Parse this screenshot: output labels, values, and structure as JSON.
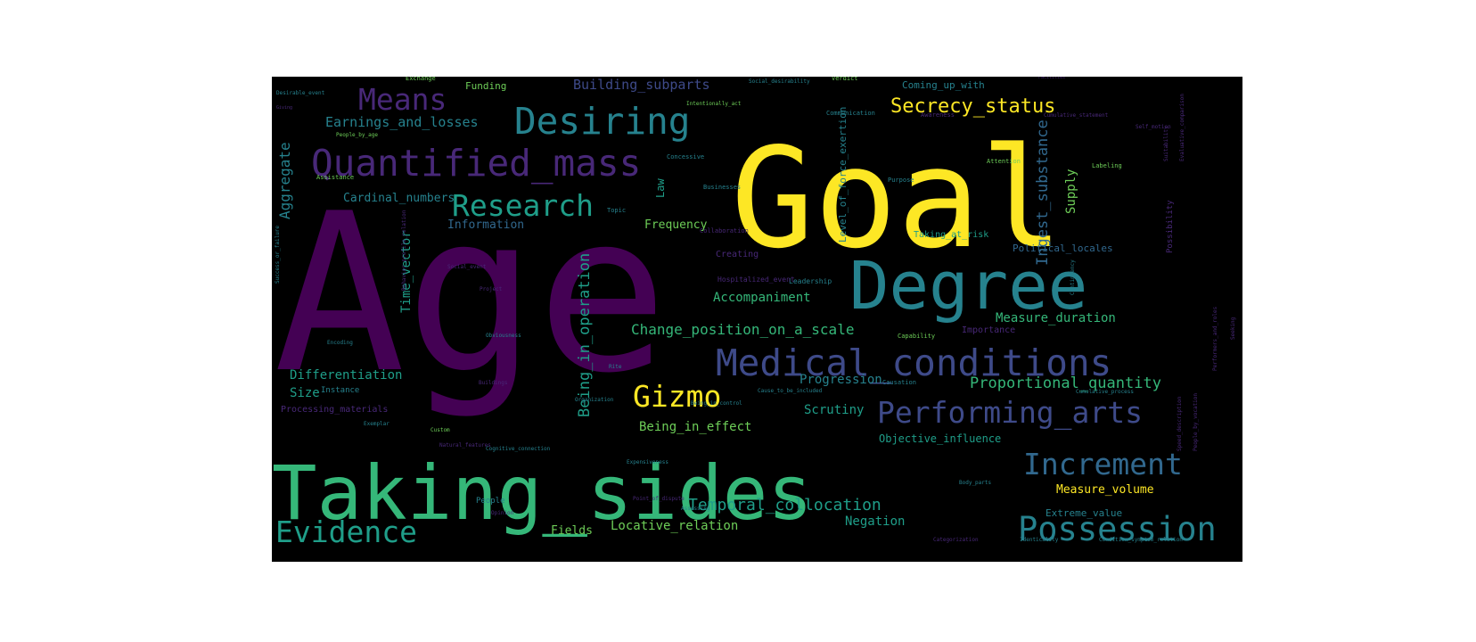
{
  "palette": {
    "purple": "#440154",
    "violet": "#482878",
    "indigo": "#3e4a89",
    "blue": "#31688e",
    "teal": "#26828e",
    "cyan": "#1f9e89",
    "green": "#35b779",
    "lime": "#6ece58",
    "yellow": "#fde725",
    "dimgreen": "#1f6f5a",
    "dimviolet": "#2c1a4e",
    "dimblue": "#1d3f5a",
    "dimyellow": "#8a8a2a"
  },
  "words": [
    {
      "text": "Age",
      "color": "purple"
    },
    {
      "text": "Goal",
      "color": "yellow"
    },
    {
      "text": "Taking_sides",
      "color": "green"
    },
    {
      "text": "Degree",
      "color": "teal"
    },
    {
      "text": "Medical_conditions",
      "color": "indigo"
    },
    {
      "text": "Desiring",
      "color": "teal"
    },
    {
      "text": "Quantified_mass",
      "color": "violet"
    },
    {
      "text": "Research",
      "color": "cyan"
    },
    {
      "text": "Means",
      "color": "violet"
    },
    {
      "text": "Possession",
      "color": "teal"
    },
    {
      "text": "Performing_arts",
      "color": "indigo"
    },
    {
      "text": "Evidence",
      "color": "cyan"
    },
    {
      "text": "Increment",
      "color": "blue"
    },
    {
      "text": "Gizmo",
      "color": "yellow"
    },
    {
      "text": "Secrecy_status",
      "color": "yellow"
    },
    {
      "text": "Change_position_on_a_scale",
      "color": "green"
    },
    {
      "text": "Temporal_collocation",
      "color": "cyan"
    },
    {
      "text": "Proportional_quantity",
      "color": "green"
    },
    {
      "text": "Being_in_operation",
      "color": "cyan"
    },
    {
      "text": "Earnings_and_losses",
      "color": "teal"
    },
    {
      "text": "Building_subparts",
      "color": "indigo"
    },
    {
      "text": "Ingest_substance",
      "color": "blue"
    },
    {
      "text": "Accompaniment",
      "color": "green"
    },
    {
      "text": "Measure_duration",
      "color": "green"
    },
    {
      "text": "Differentiation",
      "color": "cyan"
    },
    {
      "text": "Being_in_effect",
      "color": "lime"
    },
    {
      "text": "Progression",
      "color": "teal"
    },
    {
      "text": "Scrutiny",
      "color": "cyan"
    },
    {
      "text": "Measure_volume",
      "color": "yellow"
    },
    {
      "text": "Objective_influence",
      "color": "cyan"
    },
    {
      "text": "Extreme_value",
      "color": "teal"
    },
    {
      "text": "Locative_relation",
      "color": "lime"
    },
    {
      "text": "Negation",
      "color": "cyan"
    },
    {
      "text": "Fields",
      "color": "lime"
    },
    {
      "text": "Cardinal_numbers",
      "color": "teal"
    },
    {
      "text": "Information",
      "color": "blue"
    },
    {
      "text": "Frequency",
      "color": "lime"
    },
    {
      "text": "Aggregate",
      "color": "teal"
    },
    {
      "text": "Time_vector",
      "color": "cyan"
    },
    {
      "text": "Size",
      "color": "cyan"
    },
    {
      "text": "Supply",
      "color": "lime"
    },
    {
      "text": "Level_of_force_exertion",
      "color": "teal"
    },
    {
      "text": "Law",
      "color": "cyan"
    },
    {
      "text": "Funding",
      "color": "lime"
    },
    {
      "text": "Coming_up_with",
      "color": "teal"
    },
    {
      "text": "Political_locales",
      "color": "blue"
    },
    {
      "text": "Possibility",
      "color": "violet"
    },
    {
      "text": "Importance",
      "color": "violet"
    },
    {
      "text": "Taking_at_risk",
      "color": "cyan"
    },
    {
      "text": "Creating",
      "color": "violet"
    },
    {
      "text": "Leadership",
      "color": "teal"
    },
    {
      "text": "Hospitalized_event",
      "color": "violet"
    },
    {
      "text": "Instance",
      "color": "teal"
    },
    {
      "text": "Processing_materials",
      "color": "violet"
    },
    {
      "text": "People",
      "color": "teal"
    },
    {
      "text": "Exchange",
      "color": "lime"
    },
    {
      "text": "Desirable_event",
      "color": "teal"
    },
    {
      "text": "Causation",
      "color": "teal"
    },
    {
      "text": "Capability",
      "color": "lime"
    },
    {
      "text": "Verdict",
      "color": "lime"
    },
    {
      "text": "Communication",
      "color": "teal"
    },
    {
      "text": "Awareness",
      "color": "violet"
    },
    {
      "text": "Attention",
      "color": "lime"
    },
    {
      "text": "Labeling",
      "color": "lime"
    },
    {
      "text": "Purpose",
      "color": "teal"
    },
    {
      "text": "Concessive",
      "color": "teal"
    },
    {
      "text": "Businesses",
      "color": "teal"
    },
    {
      "text": "Topic",
      "color": "teal"
    },
    {
      "text": "Collaboration",
      "color": "violet"
    },
    {
      "text": "Assistance",
      "color": "lime"
    },
    {
      "text": "People_by_age",
      "color": "lime"
    },
    {
      "text": "Social_desirability",
      "color": "teal"
    },
    {
      "text": "Intentionally_act",
      "color": "lime"
    },
    {
      "text": "Cause_to_be_included",
      "color": "teal"
    },
    {
      "text": "Being_in_control",
      "color": "teal"
    },
    {
      "text": "Buildings",
      "color": "violet"
    },
    {
      "text": "Rite",
      "color": "teal"
    },
    {
      "text": "Organization",
      "color": "teal"
    },
    {
      "text": "Cumulative_process",
      "color": "teal"
    },
    {
      "text": "Expensiveness",
      "color": "teal"
    },
    {
      "text": "Point_of_dispute",
      "color": "violet"
    },
    {
      "text": "Assessing",
      "color": "teal"
    },
    {
      "text": "Opinion",
      "color": "violet"
    },
    {
      "text": "Categorization",
      "color": "violet"
    },
    {
      "text": "Identicality",
      "color": "teal"
    },
    {
      "text": "Condition_symptom_relation",
      "color": "teal"
    },
    {
      "text": "Body_parts",
      "color": "teal"
    },
    {
      "text": "Exemplar",
      "color": "teal"
    },
    {
      "text": "Custom",
      "color": "lime"
    },
    {
      "text": "Natural_features",
      "color": "violet"
    },
    {
      "text": "Encoding",
      "color": "teal"
    },
    {
      "text": "Obviousness",
      "color": "teal"
    },
    {
      "text": "Project",
      "color": "violet"
    },
    {
      "text": "Social_event",
      "color": "violet"
    },
    {
      "text": "Cognitive_connection",
      "color": "teal"
    },
    {
      "text": "Self_motion",
      "color": "violet"
    },
    {
      "text": "Cumulative_statement",
      "color": "violet"
    },
    {
      "text": "Success_or_failure",
      "color": "teal"
    },
    {
      "text": "Behavior_profile_relation",
      "color": "violet"
    },
    {
      "text": "Seeking",
      "color": "violet"
    },
    {
      "text": "Speed_description",
      "color": "violet"
    },
    {
      "text": "People_by_vocation",
      "color": "violet"
    },
    {
      "text": "Suitability",
      "color": "violet"
    },
    {
      "text": "Evaluative_comparison",
      "color": "violet"
    },
    {
      "text": "Contingency",
      "color": "teal"
    },
    {
      "text": "Facilities",
      "color": "violet"
    },
    {
      "text": "Giving",
      "color": "violet"
    },
    {
      "text": "Performers_and_roles",
      "color": "violet"
    }
  ]
}
